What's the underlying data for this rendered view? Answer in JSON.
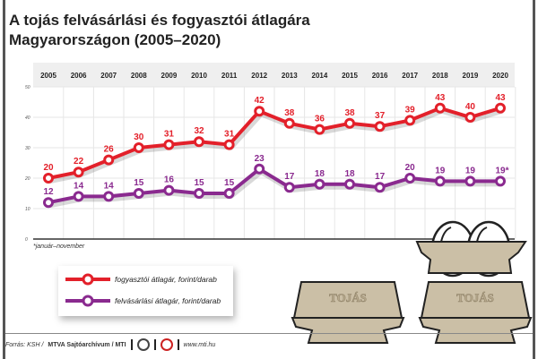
{
  "title": "A tojás felvásárlási és fogyasztói átlagára Magyarországon (2005–2020)",
  "footnote": "*január–november",
  "source": {
    "prefix": "Forrás: KSH / ",
    "agency": "MTVA Sajtóarchívum / MTI",
    "url": "www.mti.hu"
  },
  "egg_label": "TOJÁS",
  "colors": {
    "consumer": "#e3202a",
    "purchase": "#8a2a8f"
  },
  "chart_data": {
    "type": "line",
    "categories": [
      "2005",
      "2006",
      "2007",
      "2008",
      "2009",
      "2010",
      "2011",
      "2012",
      "2013",
      "2014",
      "2015",
      "2016",
      "2017",
      "2018",
      "2019",
      "2020"
    ],
    "yticks": [
      0,
      10,
      20,
      30,
      40,
      50
    ],
    "ylim": [
      0,
      50
    ],
    "grid": true,
    "legend": "bottom-left",
    "series": [
      {
        "name": "fogyasztói átlagár, forint/darab",
        "values": [
          20,
          22,
          26,
          30,
          31,
          32,
          31,
          42,
          38,
          36,
          38,
          37,
          39,
          43,
          40,
          43
        ],
        "labels": [
          "20",
          "22",
          "26",
          "30",
          "31",
          "32",
          "31",
          "42",
          "38",
          "36",
          "38",
          "37",
          "39",
          "43",
          "40",
          "43"
        ]
      },
      {
        "name": "felvásárlási átlagár, forint/darab",
        "values": [
          12,
          14,
          14,
          15,
          16,
          15,
          15,
          23,
          17,
          18,
          18,
          17,
          20,
          19,
          19,
          19
        ],
        "labels": [
          "12",
          "14",
          "14",
          "15",
          "16",
          "15",
          "15",
          "23",
          "17",
          "18",
          "18",
          "17",
          "20",
          "19",
          "19",
          "19*"
        ]
      }
    ]
  }
}
